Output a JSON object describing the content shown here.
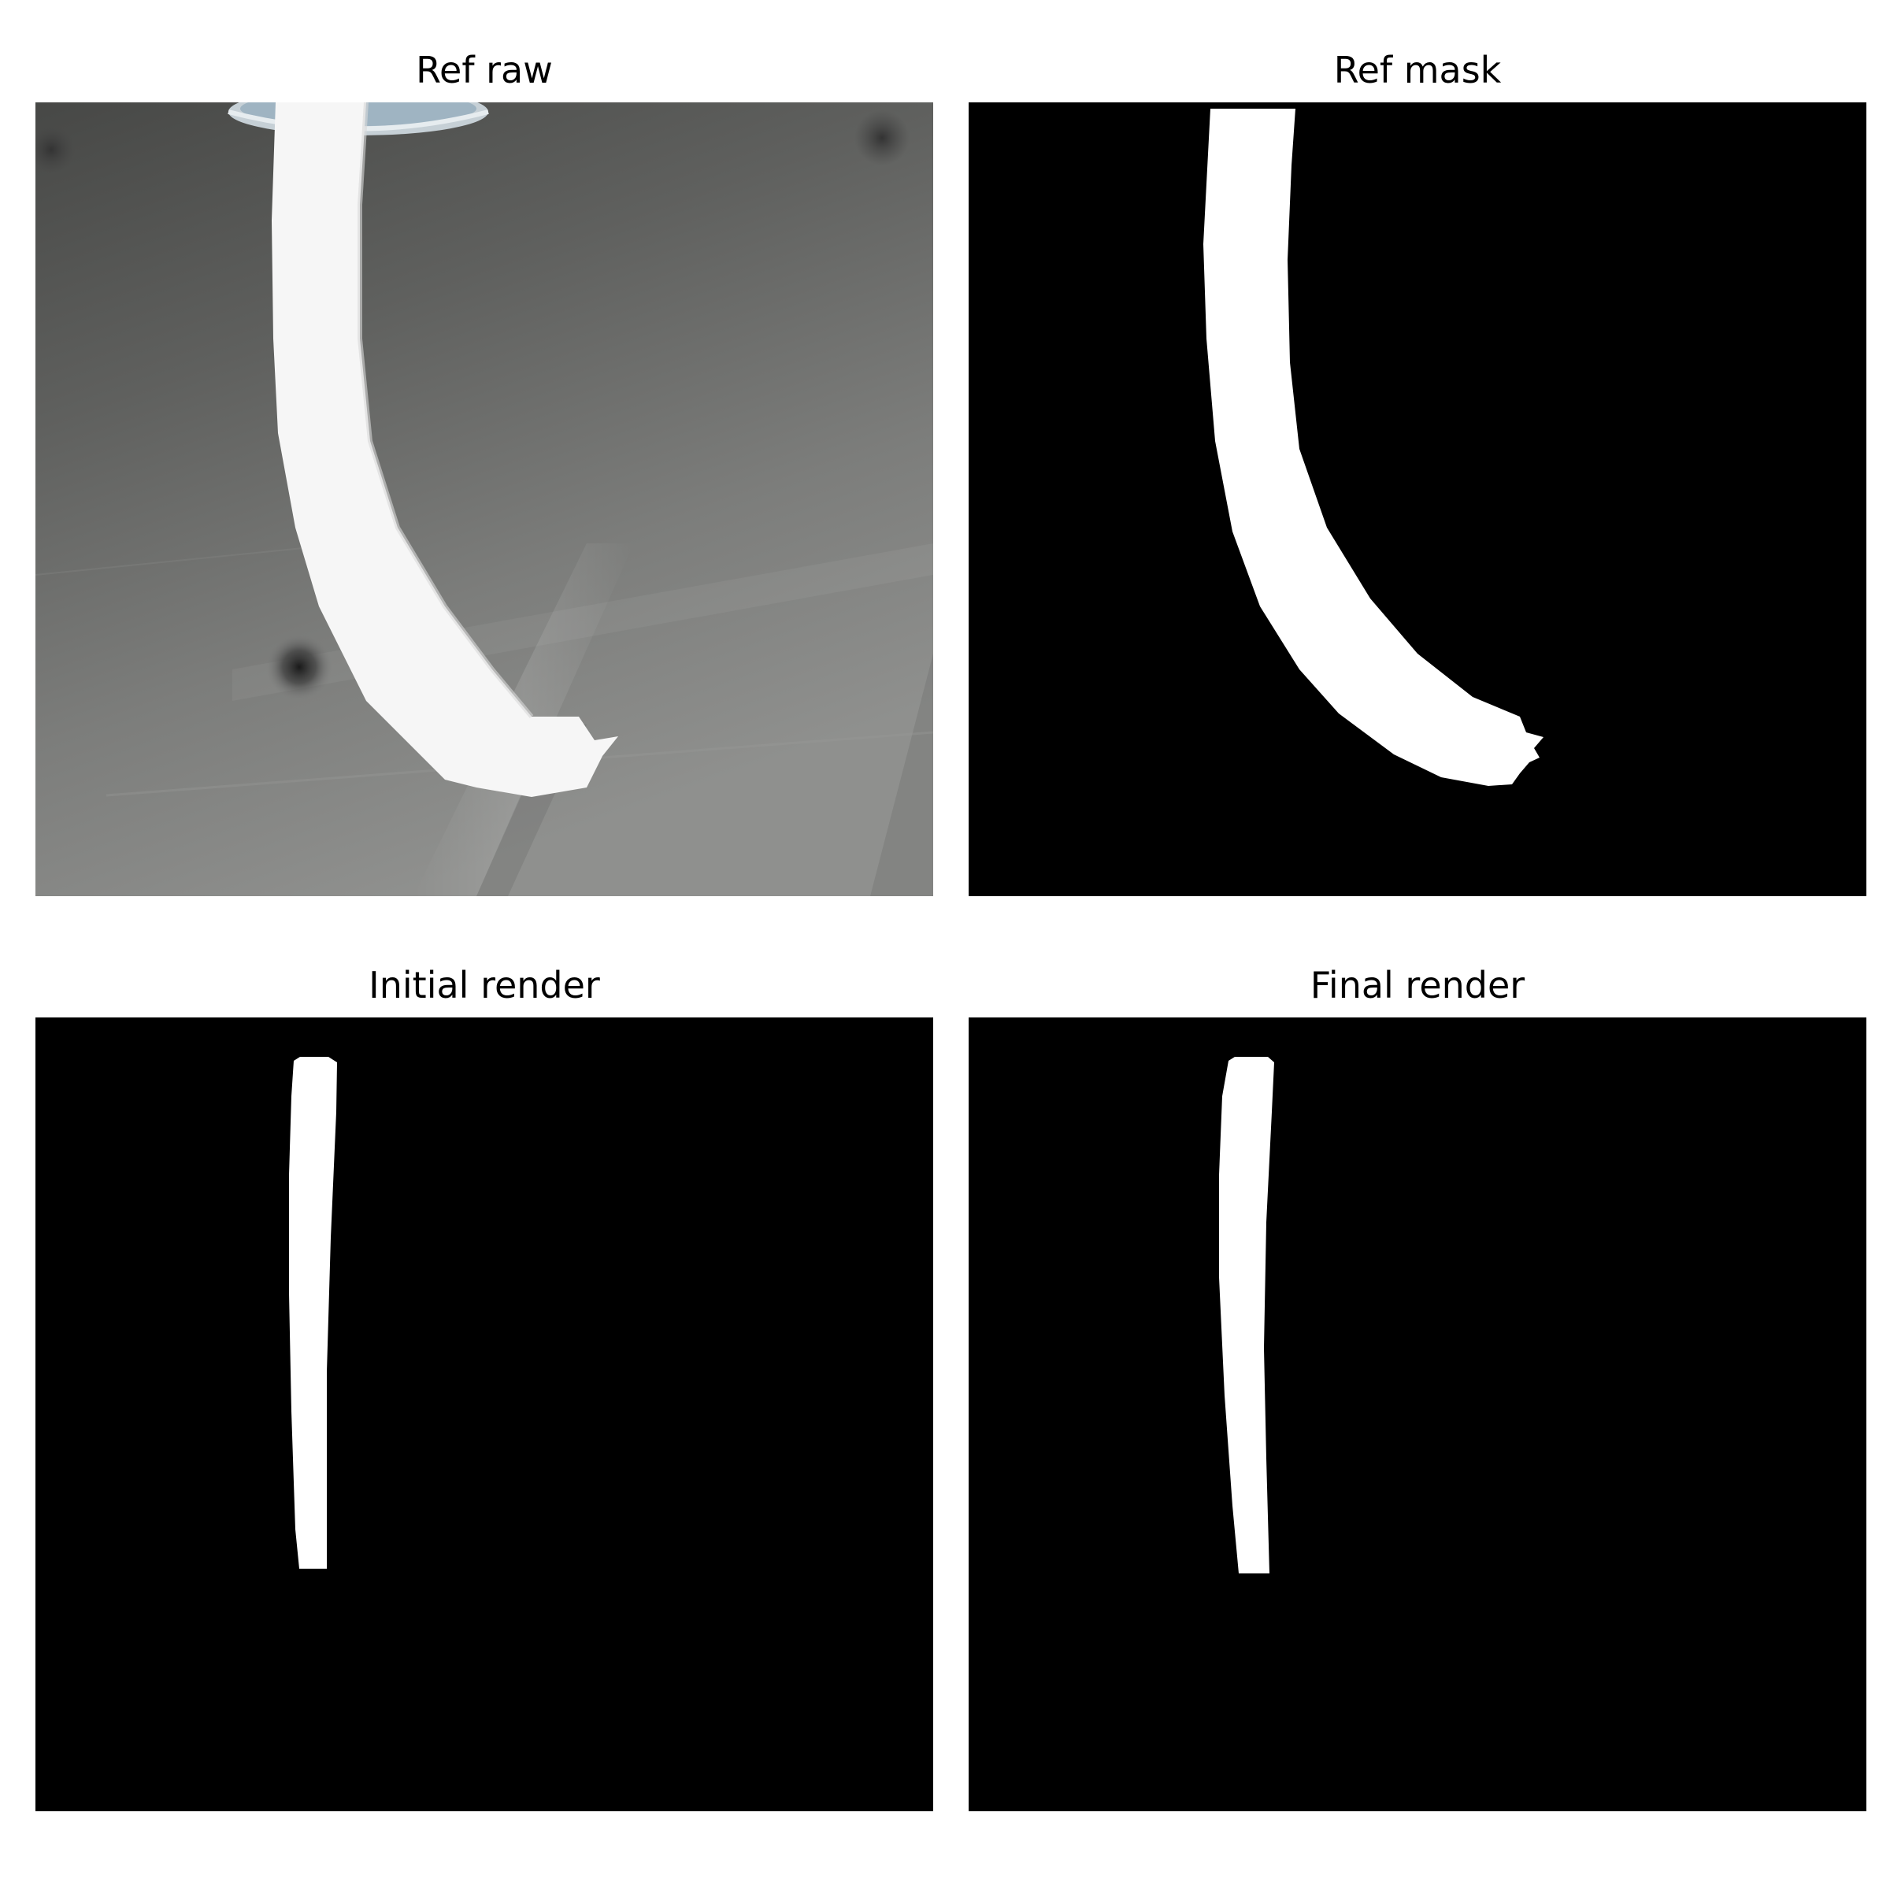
{
  "panels": [
    {
      "title": "Ref raw",
      "kind": "photo"
    },
    {
      "title": "Ref mask",
      "kind": "mask"
    },
    {
      "title": "Initial render",
      "kind": "mask"
    },
    {
      "title": "Final render",
      "kind": "mask"
    }
  ],
  "colors": {
    "background": "#ffffff",
    "mask_background": "#000000",
    "mask_foreground": "#ffffff",
    "photo_background": "#7f807e"
  }
}
